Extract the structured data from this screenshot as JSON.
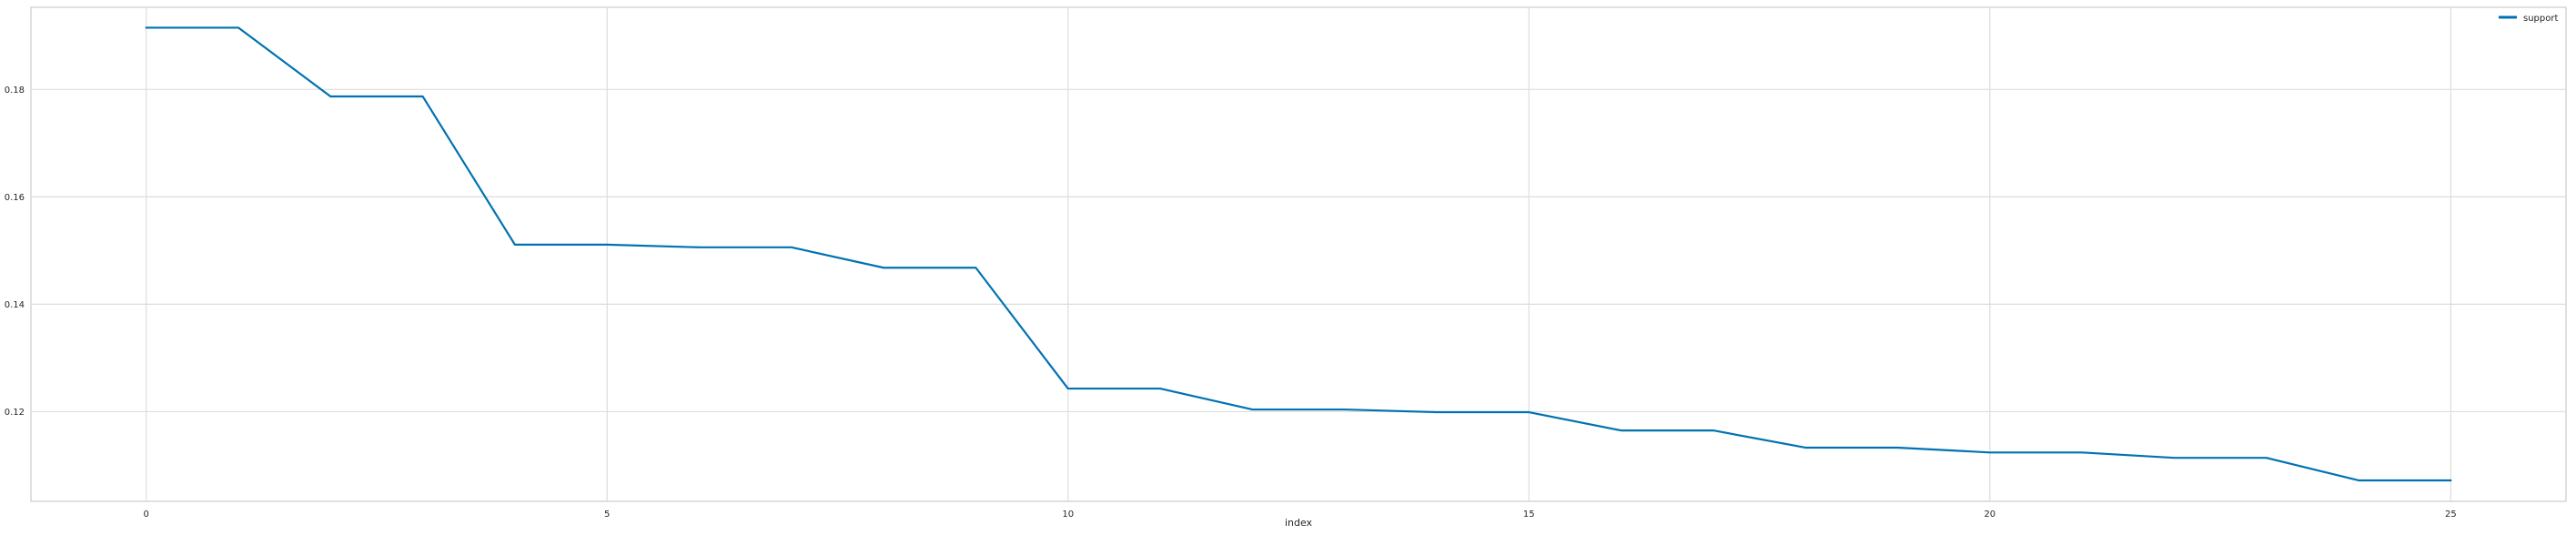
{
  "chart_data": {
    "type": "line",
    "xlabel": "index",
    "ylabel": "",
    "xlim": [
      -1.25,
      26.25
    ],
    "ylim": [
      0.1033,
      0.1953
    ],
    "xticks": [
      0,
      5,
      10,
      15,
      20,
      25
    ],
    "yticks": [
      0.12,
      0.14,
      0.16,
      0.18
    ],
    "grid": true,
    "legend_position": "top-right",
    "series": [
      {
        "name": "support",
        "color": "#0072b2",
        "x": [
          0,
          1,
          2,
          3,
          4,
          5,
          6,
          7,
          8,
          9,
          10,
          11,
          12,
          13,
          14,
          15,
          16,
          17,
          18,
          19,
          20,
          21,
          22,
          23,
          24,
          25
        ],
        "values": [
          0.1915,
          0.1915,
          0.1787,
          0.1787,
          0.1511,
          0.1511,
          0.1506,
          0.1506,
          0.1468,
          0.1468,
          0.1243,
          0.1243,
          0.1204,
          0.1204,
          0.1199,
          0.1199,
          0.1165,
          0.1165,
          0.1133,
          0.1133,
          0.1124,
          0.1124,
          0.1114,
          0.1114,
          0.1072,
          0.1072
        ]
      }
    ]
  }
}
